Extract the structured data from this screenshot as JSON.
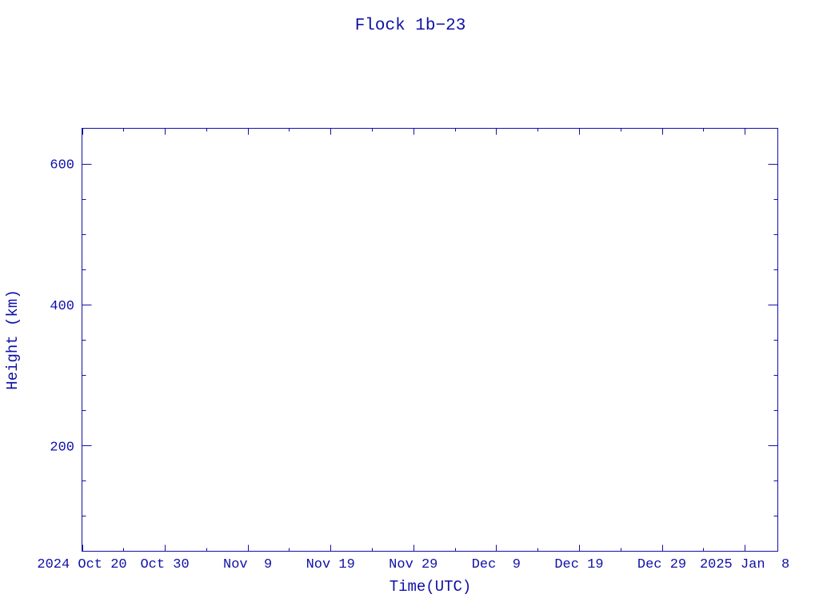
{
  "chart_data": {
    "type": "line",
    "title": "Flock 1b−23",
    "xlabel": "Time(UTC)",
    "ylabel": "Height (km)",
    "xlim": [
      "2024-10-20",
      "2025-01-12"
    ],
    "ylim": [
      50,
      650
    ],
    "x_tick_labels": [
      {
        "date": "2024-10-20",
        "label": "2024 Oct 20"
      },
      {
        "date": "2024-10-30",
        "label": "Oct 30"
      },
      {
        "date": "2024-11-09",
        "label": "Nov  9"
      },
      {
        "date": "2024-11-19",
        "label": "Nov 19"
      },
      {
        "date": "2024-11-29",
        "label": "Nov 29"
      },
      {
        "date": "2024-12-09",
        "label": "Dec  9"
      },
      {
        "date": "2024-12-19",
        "label": "Dec 19"
      },
      {
        "date": "2024-12-29",
        "label": "Dec 29"
      },
      {
        "date": "2025-01-08",
        "label": "2025 Jan  8"
      }
    ],
    "y_ticks": [
      200,
      400,
      600
    ],
    "y_tick_labels": [
      "200",
      "400",
      "600"
    ],
    "series": [],
    "grid": false,
    "color": "#1010a8"
  }
}
